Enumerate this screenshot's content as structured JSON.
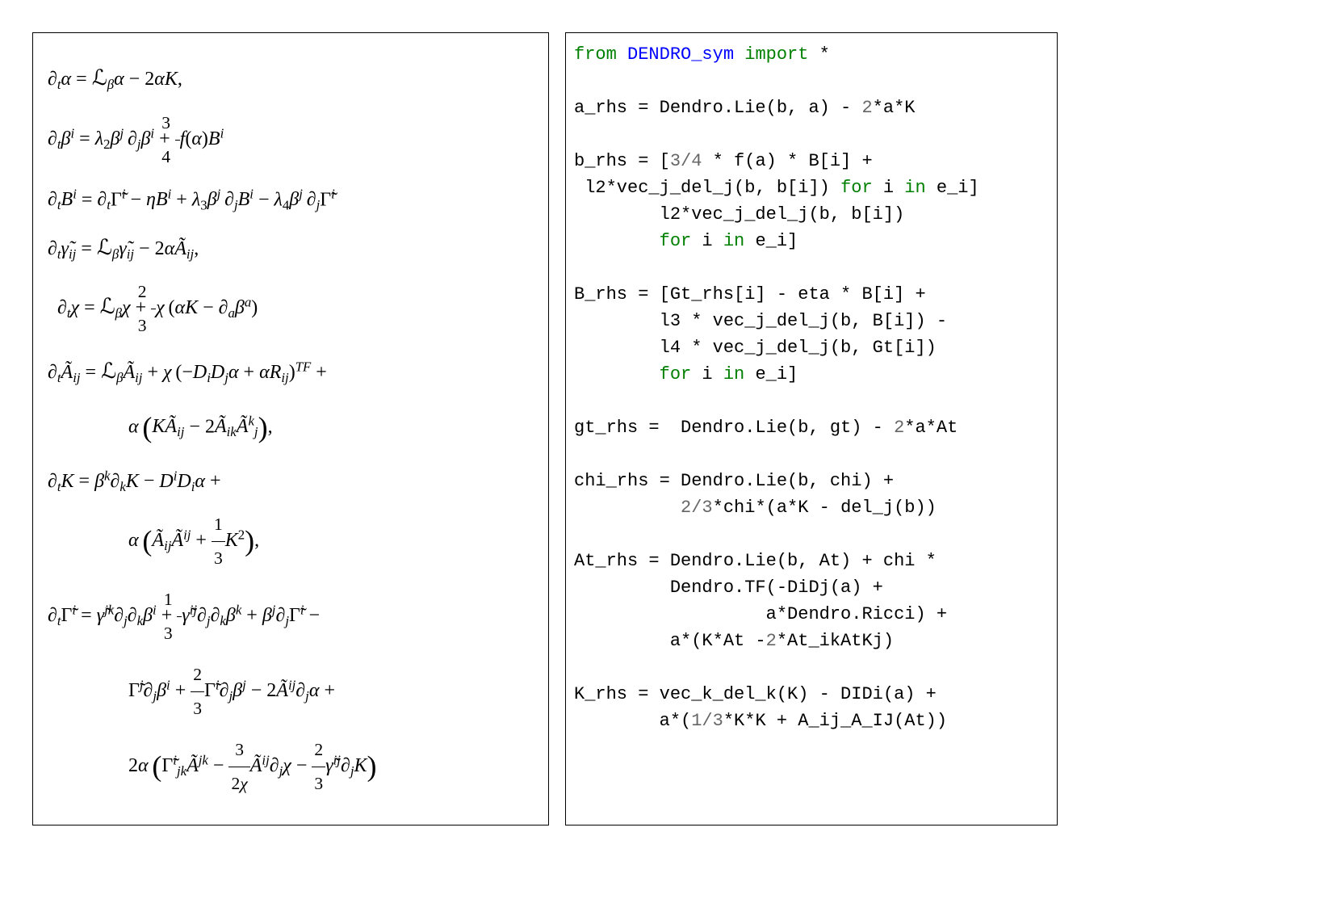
{
  "left_panel": {
    "type": "math-equations",
    "font": "Computer Modern / serif italic",
    "font_size_pt": 18,
    "border_color": "#000000",
    "background_color": "#ffffff",
    "equations": [
      "∂_t α = ℒ_β α − 2αK,",
      "∂_t β^i = λ_2 β^j ∂_j β^i + (3/4) f(α) B^i",
      "∂_t B^i = ∂_t Γ̃^i − η B^i + λ_3 β^j ∂_j B^i − λ_4 β^j ∂_j Γ̃^i",
      "∂_t γ̃_{ij} = ℒ_β γ̃_{ij} − 2α Ã_{ij},",
      "∂_t χ = ℒ_β χ + (2/3) χ (αK − ∂_a β^a)",
      "∂_t Ã_{ij} = ℒ_β Ã_{ij} + χ (−D_i D_j α + α R_{ij})^{TF} +",
      "α ( K Ã_{ij} − 2 Ã_{ik} Ã^k_j ),",
      "∂_t K = β^k ∂_k K − D^i D_i α +",
      "α ( Ã_{ij} Ã^{ij} + (1/3) K^2 ),",
      "∂_t Γ̃^i = γ̃^{jk} ∂_j ∂_k β^i + (1/3) γ̃^{ij} ∂_j ∂_k β^k + β^j ∂_j Γ̃^i −",
      "Γ̃^j ∂_j β^i + (2/3) Γ̃^i ∂_j β^j − 2 Ã^{ij} ∂_j α +",
      "2α ( Γ̃^i_{jk} Ã^{jk} − (3/(2χ)) Ã^{ij} ∂_j χ − (2/3) γ̃^{ij} ∂_j K )"
    ]
  },
  "right_panel": {
    "type": "source-code",
    "language": "python",
    "font": "Courier / monospace",
    "font_size_pt": 16,
    "border_color": "#000000",
    "background_color": "#ffffff",
    "syntax_colors": {
      "keyword": "#008000",
      "module": "#0000ff",
      "number": "#666666",
      "text": "#000000"
    },
    "kw_from": "from",
    "module": "DENDRO_sym",
    "kw_import": "import",
    "star": "*",
    "kw_for": "for",
    "kw_in": "in",
    "lines": {
      "l1a": "a_rhs = Dendro.Lie(b, a) - ",
      "l1b": "*a*K",
      "l2a": "b_rhs = [",
      "l2b": " * f(a) * B[i] +",
      "l3a": " l2*vec_j_del_j(b, b[i]) ",
      "l3b": " i ",
      "l3c": " e_i]",
      "l4": "        l2*vec_j_del_j(b, b[i])",
      "l5a": "        ",
      "l5b": " i ",
      "l5c": " e_i]",
      "l6": "B_rhs = [Gt_rhs[i] - eta * B[i] +",
      "l7": "        l3 * vec_j_del_j(b, B[i]) -",
      "l8": "        l4 * vec_j_del_j(b, Gt[i])",
      "l9a": "        ",
      "l9b": " i ",
      "l9c": " e_i]",
      "l10a": "gt_rhs =  Dendro.Lie(b, gt) - ",
      "l10b": "*a*At",
      "l11": "chi_rhs = Dendro.Lie(b, chi) +",
      "l12a": "          ",
      "l12b": "*chi*(a*K - del_j(b))",
      "l13": "At_rhs = Dendro.Lie(b, At) + chi *",
      "l14": "         Dendro.TF(-DiDj(a) +",
      "l15": "                  a*Dendro.Ricci) +",
      "l16a": "         a*(K*At -",
      "l16b": "*At_ikAtKj)",
      "l17": "K_rhs = vec_k_del_k(K) - DIDi(a) +",
      "l18a": "        a*(",
      "l18b": "*K*K + A_ij_A_IJ(At))"
    },
    "numbers": {
      "n2": "2",
      "n3_4": "3/4",
      "n2_3": "2/3",
      "n1_3": "1/3"
    }
  }
}
